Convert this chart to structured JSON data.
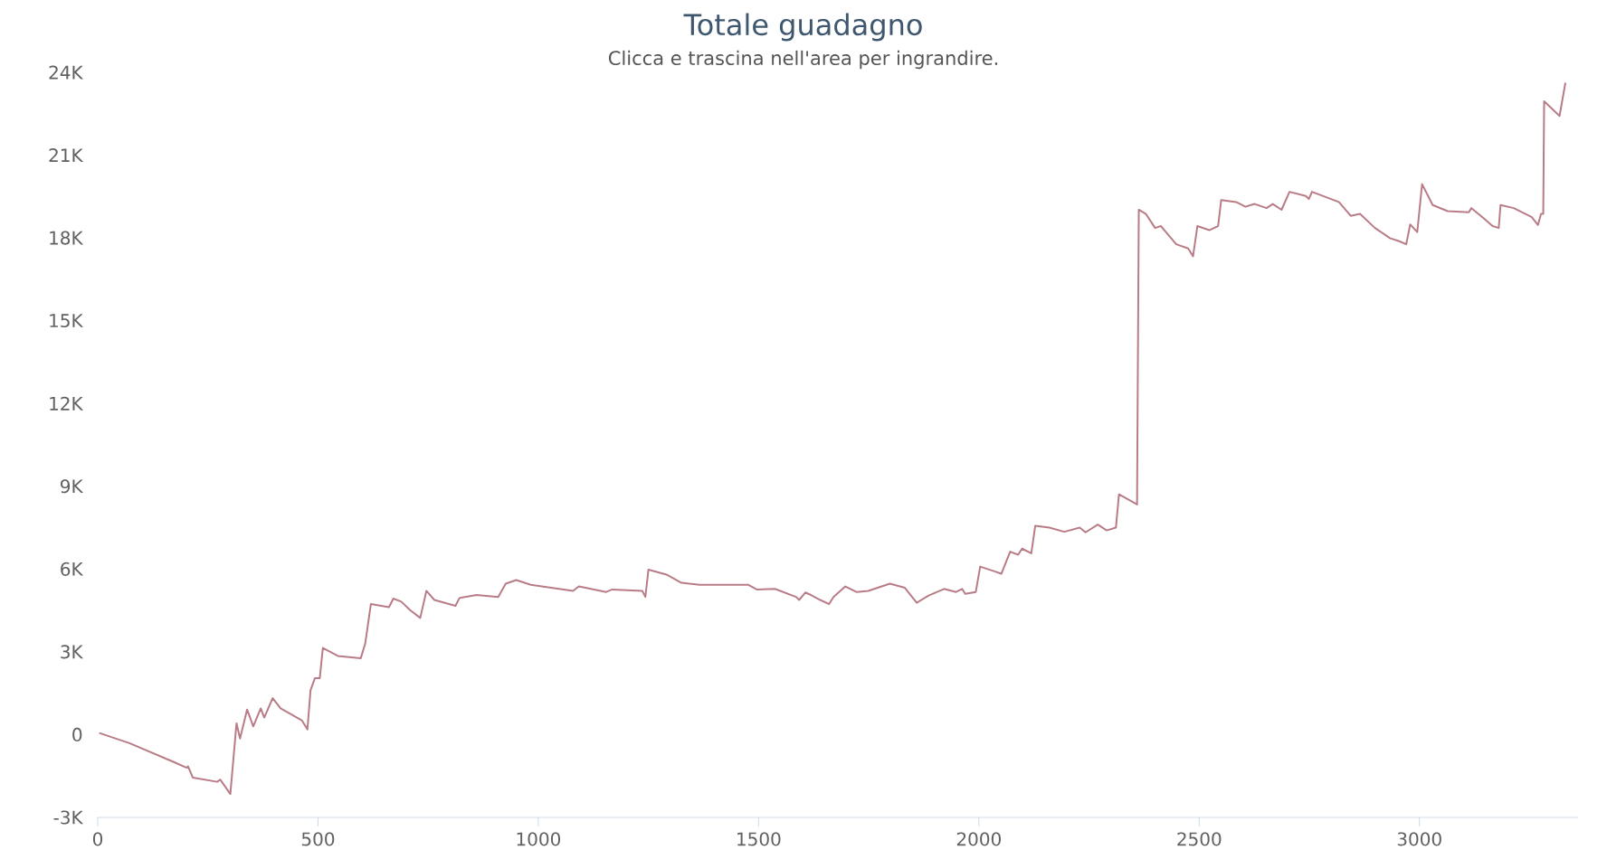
{
  "chart_data": {
    "type": "line",
    "title": "Totale guadagno",
    "subtitle": "Clicca e trascina nell'area per ingrandire.",
    "color": "#b97c86",
    "xlim": [
      0,
      3360
    ],
    "ylim": [
      -3000,
      24000
    ],
    "xticks": [
      0,
      500,
      1000,
      1500,
      2000,
      2500,
      3000
    ],
    "yticks": [
      {
        "value": -3000,
        "label": "-3K"
      },
      0,
      {
        "value": 3000,
        "label": "3K"
      },
      {
        "value": 6000,
        "label": "6K"
      },
      {
        "value": 9000,
        "label": "9K"
      },
      {
        "value": 12000,
        "label": "12K"
      },
      {
        "value": 15000,
        "label": "15K"
      },
      {
        "value": 18000,
        "label": "18K"
      },
      {
        "value": 21000,
        "label": "21K"
      },
      {
        "value": 24000,
        "label": "24K"
      }
    ],
    "x": [
      5,
      72,
      175,
      202,
      205,
      216,
      271,
      278,
      301,
      315,
      323,
      339,
      353,
      370,
      378,
      397,
      415,
      463,
      476,
      483,
      493,
      504,
      511,
      545,
      597,
      607,
      620,
      661,
      671,
      689,
      709,
      732,
      746,
      764,
      812,
      821,
      860,
      909,
      926,
      950,
      983,
      1079,
      1092,
      1154,
      1168,
      1236,
      1243,
      1250,
      1291,
      1325,
      1366,
      1476,
      1496,
      1537,
      1585,
      1592,
      1606,
      1619,
      1640,
      1660,
      1670,
      1697,
      1722,
      1749,
      1798,
      1832,
      1859,
      1886,
      1921,
      1948,
      1962,
      1969,
      1993,
      2003,
      2037,
      2051,
      2071,
      2089,
      2098,
      2119,
      2128,
      2160,
      2194,
      2229,
      2242,
      2270,
      2290,
      2311,
      2318,
      2359,
      2363,
      2379,
      2400,
      2413,
      2448,
      2475,
      2486,
      2496,
      2523,
      2543,
      2550,
      2584,
      2605,
      2626,
      2653,
      2667,
      2687,
      2705,
      2742,
      2749,
      2756,
      2817,
      2844,
      2865,
      2899,
      2933,
      2954,
      2970,
      2979,
      2995,
      3006,
      3030,
      3064,
      3112,
      3118,
      3146,
      3166,
      3180,
      3184,
      3214,
      3255,
      3269,
      3276,
      3281,
      3283,
      3318,
      3331
    ],
    "values": [
      50,
      -310,
      -1010,
      -1200,
      -1150,
      -1560,
      -1710,
      -1630,
      -2150,
      410,
      -140,
      910,
      300,
      950,
      620,
      1320,
      950,
      520,
      190,
      1610,
      2050,
      2050,
      3140,
      2850,
      2770,
      3290,
      4730,
      4620,
      4930,
      4820,
      4510,
      4230,
      5210,
      4880,
      4670,
      4950,
      5060,
      4990,
      5470,
      5600,
      5430,
      5210,
      5370,
      5170,
      5260,
      5210,
      4990,
      5980,
      5800,
      5500,
      5430,
      5430,
      5260,
      5280,
      4990,
      4880,
      5150,
      5060,
      4880,
      4730,
      4990,
      5370,
      5170,
      5210,
      5470,
      5320,
      4780,
      5040,
      5280,
      5170,
      5280,
      5100,
      5170,
      6090,
      5910,
      5830,
      6630,
      6520,
      6740,
      6570,
      7570,
      7500,
      7350,
      7500,
      7330,
      7610,
      7400,
      7500,
      8710,
      8340,
      19020,
      18870,
      18360,
      18430,
      17770,
      17620,
      17330,
      18430,
      18280,
      18430,
      19370,
      19300,
      19130,
      19230,
      19080,
      19230,
      19020,
      19670,
      19520,
      19410,
      19670,
      19300,
      18800,
      18870,
      18360,
      17990,
      17880,
      17770,
      18490,
      18210,
      19950,
      19190,
      18970,
      18930,
      19080,
      18710,
      18430,
      18360,
      19190,
      19080,
      18750,
      18470,
      18870,
      18870,
      22950,
      22420,
      23600
    ]
  }
}
